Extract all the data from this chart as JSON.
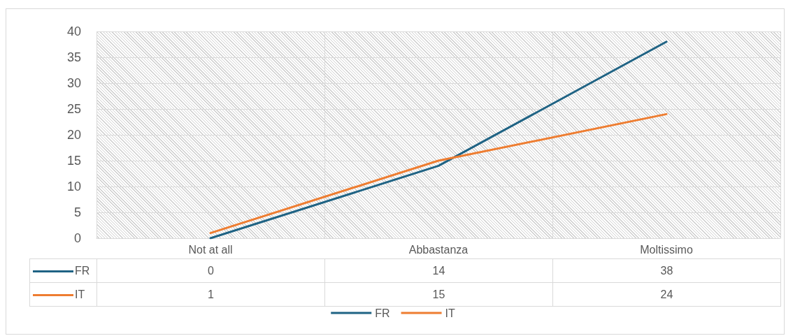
{
  "chart_data": {
    "type": "line",
    "categories": [
      "Not at all",
      "Abbastanza",
      "Moltissimo"
    ],
    "series": [
      {
        "name": "FR",
        "color": "#1f6384",
        "values": [
          0,
          14,
          38
        ]
      },
      {
        "name": "IT",
        "color": "#ee7d31",
        "values": [
          1,
          15,
          24
        ]
      }
    ],
    "ylim": [
      0,
      40
    ],
    "yticks": [
      0,
      5,
      10,
      15,
      20,
      25,
      30,
      35,
      40
    ],
    "grid": true,
    "legend": "bottom",
    "marker": "none",
    "line_style": "solid",
    "data_labels": true
  }
}
